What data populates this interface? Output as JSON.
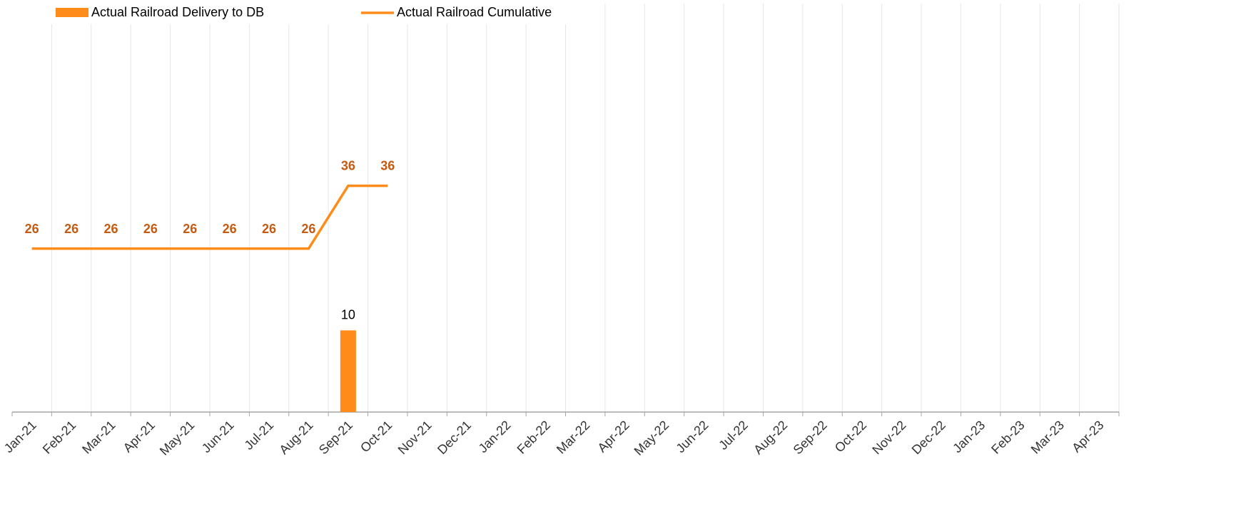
{
  "chart_data": {
    "type": "bar",
    "categories": [
      "Jan-21",
      "Feb-21",
      "Mar-21",
      "Apr-21",
      "May-21",
      "Jun-21",
      "Jul-21",
      "Aug-21",
      "Sep-21",
      "Oct-21",
      "Nov-21",
      "Dec-21",
      "Jan-22",
      "Feb-22",
      "Mar-22",
      "Apr-22",
      "May-22",
      "Jun-22",
      "Jul-22",
      "Aug-22",
      "Sep-22",
      "Oct-22",
      "Nov-22",
      "Dec-22",
      "Jan-23",
      "Feb-23",
      "Mar-23",
      "Apr-23"
    ],
    "series": [
      {
        "name": "Actual Railroad Delivery to DB",
        "type": "bar",
        "color": "#ff8c1a",
        "values": [
          null,
          null,
          null,
          null,
          null,
          null,
          null,
          null,
          10,
          null,
          null,
          null,
          null,
          null,
          null,
          null,
          null,
          null,
          null,
          null,
          null,
          null,
          null,
          null,
          null,
          null,
          null,
          null
        ]
      },
      {
        "name": "Actual Railroad Cumulative",
        "type": "line",
        "axis": "y2",
        "color": "#ff8c1a",
        "label_color": "#c55a11",
        "values": [
          26,
          26,
          26,
          26,
          26,
          26,
          26,
          26,
          36,
          36,
          null,
          null,
          null,
          null,
          null,
          null,
          null,
          null,
          null,
          null,
          null,
          null,
          null,
          null,
          null,
          null,
          null,
          null
        ]
      }
    ],
    "ylim": [
      0,
      50
    ],
    "y2lim": [
      0,
      65
    ],
    "grid": true,
    "legend": "top-left"
  }
}
